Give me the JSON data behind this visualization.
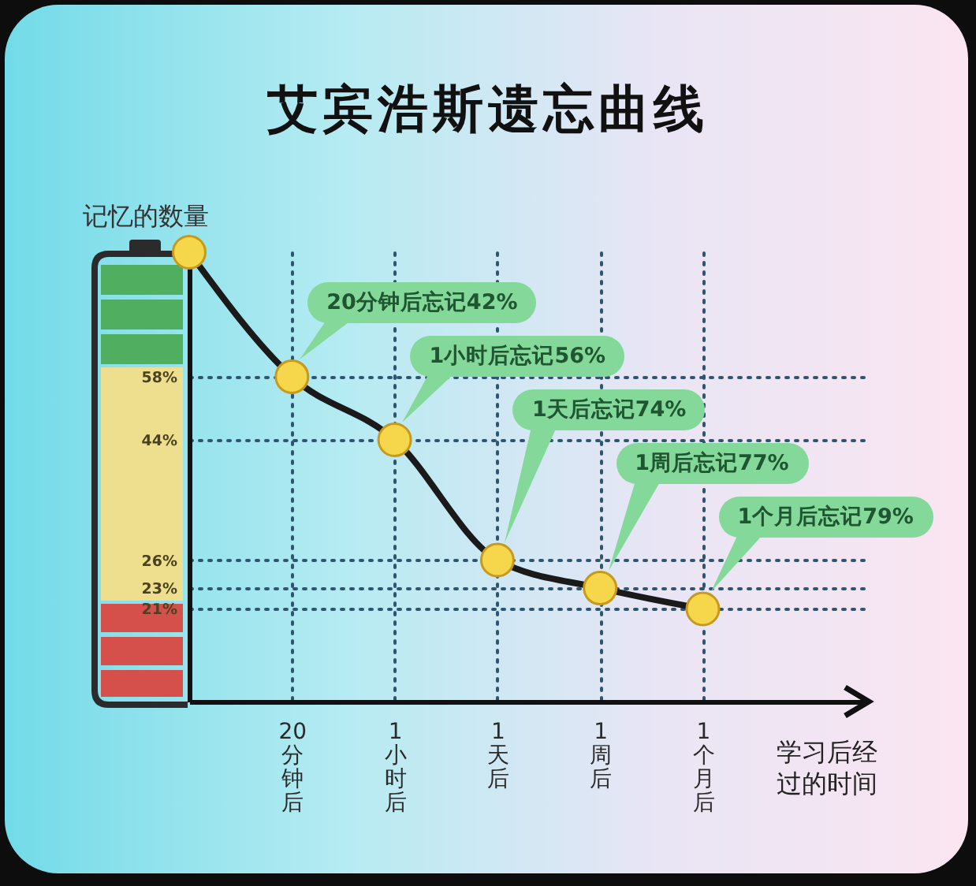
{
  "chart_data": {
    "type": "line",
    "title": "艾宾浩斯遗忘曲线",
    "xlabel": "学习后经过的时间",
    "ylabel": "记忆的数量",
    "categories": [
      null,
      "20分钟后",
      "1小时后",
      "1天后",
      "1周后",
      "1个月后"
    ],
    "series": [
      {
        "color": "#1a1a1a",
        "values": [
          100,
          58,
          44,
          26,
          23,
          21
        ]
      }
    ],
    "ylim": [
      14,
      100
    ],
    "yticks": [
      {
        "value": 58,
        "label": "58%"
      },
      {
        "value": 44,
        "label": "44%"
      },
      {
        "value": 26,
        "label": "26%"
      },
      {
        "value": 23,
        "label": "23%"
      },
      {
        "value": 21,
        "label": "21%"
      }
    ],
    "log": true,
    "grid": true,
    "marker": "circle",
    "line_style": "solid",
    "annotations": [
      "20分钟后忘记42%",
      "1小时后忘记56%",
      "1天后忘记74%",
      "1周后忘记77%",
      "1个月后忘记79%"
    ]
  }
}
